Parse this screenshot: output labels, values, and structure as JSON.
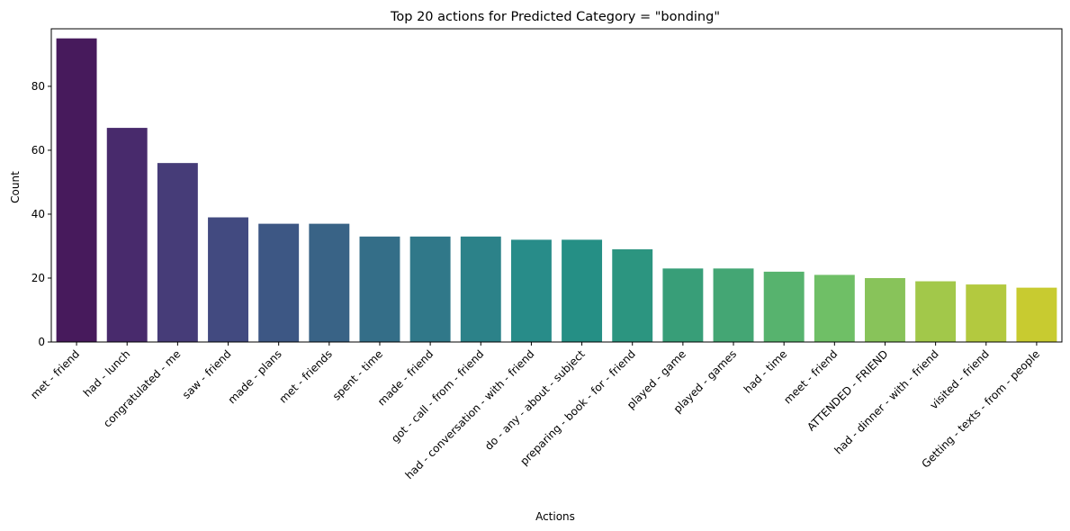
{
  "chart_data": {
    "type": "bar",
    "title": "Top 20 actions for Predicted Category = \"bonding\"",
    "xlabel": "Actions",
    "ylabel": "Count",
    "ylim": [
      0,
      98
    ],
    "yticks": [
      0,
      20,
      40,
      60,
      80
    ],
    "grid": false,
    "categories": [
      "met - friend",
      "had - lunch",
      "congratulated - me",
      "saw - friend",
      "made - plans",
      "met - friends",
      "spent - time",
      "made - friend",
      "got - call - from - friend",
      "had - conversation - with - friend",
      "do - any - about - subject",
      "preparing - book - for - friend",
      "played - game",
      "played - games",
      "had - time",
      "meet - friend",
      "ATTENDED - FRIEND",
      "had - dinner - with - friend",
      "visited - friend",
      "Getting - texts - from - people"
    ],
    "values": [
      95,
      67,
      56,
      39,
      37,
      37,
      33,
      33,
      33,
      32,
      32,
      29,
      23,
      23,
      22,
      21,
      20,
      19,
      18,
      17
    ],
    "colors": [
      "#471a5c",
      "#482a6c",
      "#463c78",
      "#424a80",
      "#3d5784",
      "#396386",
      "#346e88",
      "#307889",
      "#2c8289",
      "#288c89",
      "#258f85",
      "#2c9580",
      "#389e78",
      "#44a674",
      "#57b36e",
      "#6fbf66",
      "#88c35a",
      "#a2c84a",
      "#b3c93f",
      "#c8cb30"
    ]
  }
}
